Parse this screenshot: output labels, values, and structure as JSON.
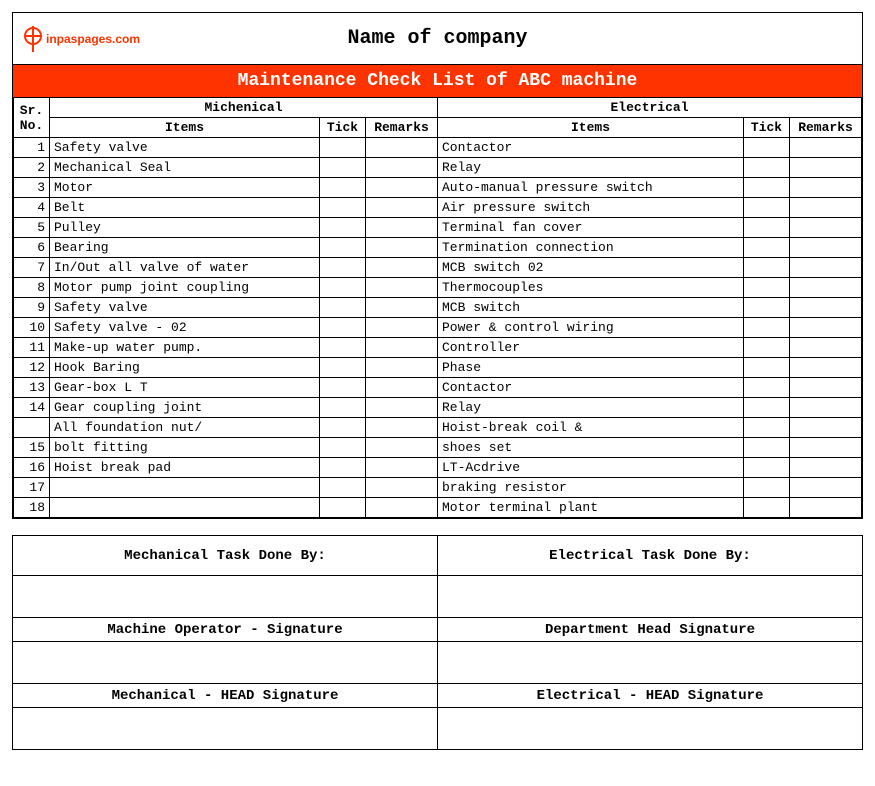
{
  "logo_text": "inpaspages.com",
  "company_name": "Name of company",
  "title": "Maintenance Check List of ABC machine",
  "colors": {
    "accent": "#ff3300",
    "accent_text": "#ffffff",
    "border": "#000000",
    "background": "#ffffff"
  },
  "section_headers": {
    "mechanical": "Michenical",
    "electrical": "Electrical"
  },
  "column_headers": {
    "sr": "Sr. No.",
    "items": "Items",
    "tick": "Tick",
    "remarks": "Remarks"
  },
  "rows": [
    {
      "sr": "1",
      "mech": "Safety valve",
      "elec": "Contactor"
    },
    {
      "sr": "2",
      "mech": "Mechanical Seal",
      "elec": "Relay"
    },
    {
      "sr": "3",
      "mech": "Motor",
      "elec": "Auto-manual pressure switch"
    },
    {
      "sr": "4",
      "mech": "Belt",
      "elec": "Air pressure switch"
    },
    {
      "sr": "5",
      "mech": "Pulley",
      "elec": "Terminal fan cover"
    },
    {
      "sr": "6",
      "mech": "Bearing",
      "elec": "Termination connection"
    },
    {
      "sr": "7",
      "mech": "In/Out all valve of water",
      "elec": "MCB switch 02"
    },
    {
      "sr": "8",
      "mech": "Motor pump joint coupling",
      "elec": "Thermocouples"
    },
    {
      "sr": "9",
      "mech": "Safety valve",
      "elec": "MCB switch"
    },
    {
      "sr": "10",
      "mech": "Safety valve - 02",
      "elec": "Power & control wiring"
    },
    {
      "sr": "11",
      "mech": "Make-up water pump.",
      "elec": "Controller"
    },
    {
      "sr": "12",
      "mech": "Hook Baring",
      "elec": "Phase"
    },
    {
      "sr": "13",
      "mech": "Gear-box L T",
      "elec": "Contactor"
    },
    {
      "sr": "14",
      "mech": "Gear coupling joint",
      "elec": "Relay"
    },
    {
      "sr": "",
      "mech": "All foundation nut/",
      "elec": "Hoist-break coil &"
    },
    {
      "sr": "15",
      "mech": "bolt fitting",
      "elec": "shoes set"
    },
    {
      "sr": "16",
      "mech": "Hoist break pad",
      "elec": "LT-Acdrive"
    },
    {
      "sr": "17",
      "mech": "",
      "elec": "braking resistor"
    },
    {
      "sr": "18",
      "mech": "",
      "elec": "Motor terminal plant"
    }
  ],
  "signatures": {
    "mech_done_by": "Mechanical Task Done By:",
    "elec_done_by": "Electrical Task Done By:",
    "operator": "Machine Operator - Signature",
    "dept_head": "Department Head Signature",
    "mech_head": "Mechanical - HEAD Signature",
    "elec_head": "Electrical - HEAD Signature"
  }
}
